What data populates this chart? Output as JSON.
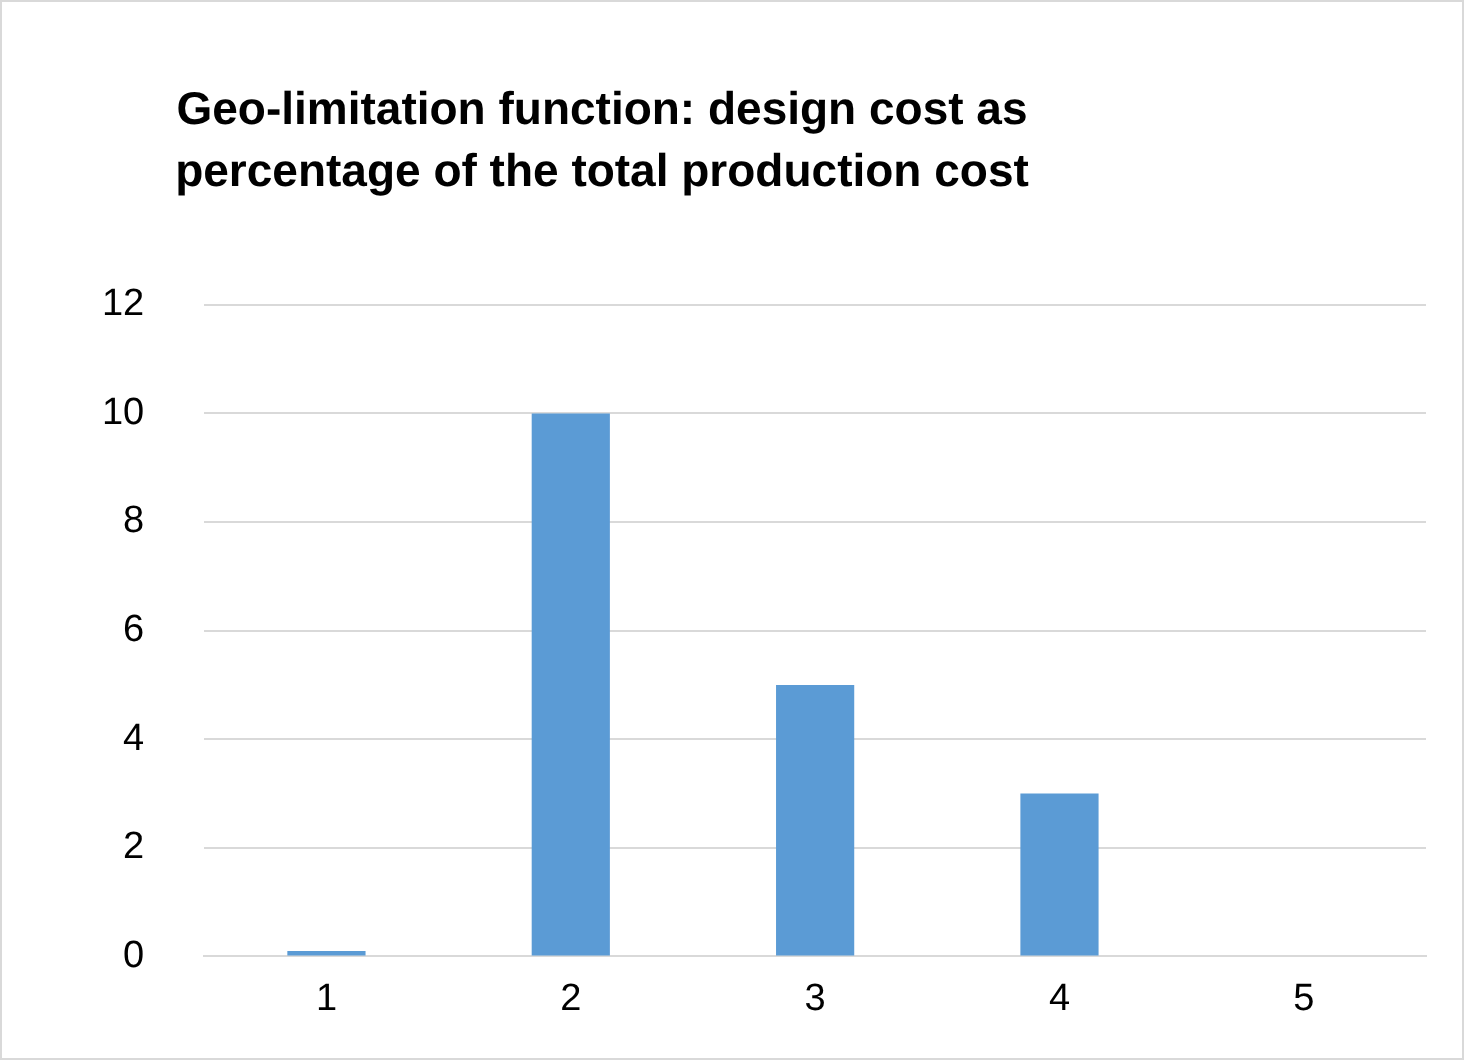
{
  "chart_data": {
    "type": "bar",
    "title": "Geo-limitation function: design cost as percentage of the total production cost",
    "categories": [
      "1",
      "2",
      "3",
      "4",
      "5"
    ],
    "values": [
      0.1,
      10,
      5,
      3,
      0
    ],
    "color": "#5b9bd5",
    "ylim": [
      0,
      12
    ],
    "yticks": [
      0,
      2,
      4,
      6,
      8,
      10,
      12
    ],
    "grid": "y",
    "legend": false
  }
}
